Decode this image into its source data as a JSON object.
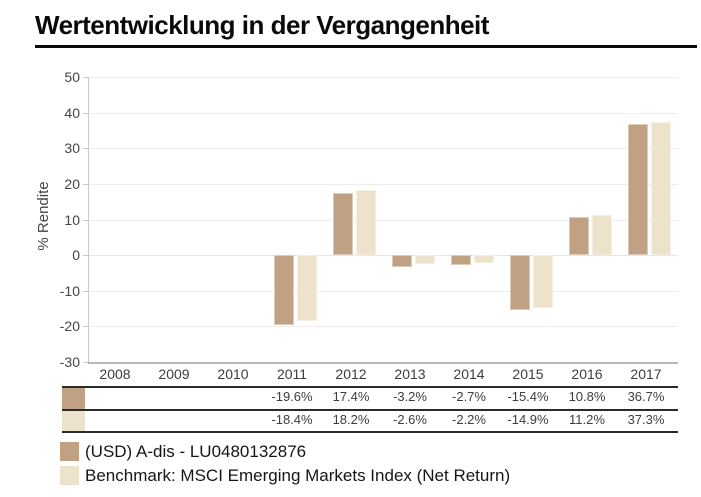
{
  "title": "Wertentwicklung in der Vergangenheit",
  "chart_data": {
    "type": "bar",
    "title": "Wertentwicklung in der Vergangenheit",
    "categories": [
      "2008",
      "2009",
      "2010",
      "2011",
      "2012",
      "2013",
      "2014",
      "2015",
      "2016",
      "2017"
    ],
    "series": [
      {
        "name": "(USD) A-dis - LU0480132876",
        "color": "#c0a183",
        "values": [
          null,
          null,
          null,
          -19.6,
          17.4,
          -3.2,
          -2.7,
          -15.4,
          10.8,
          36.7
        ]
      },
      {
        "name": "Benchmark: MSCI Emerging Markets Index (Net Return)",
        "color": "#ede2cb",
        "values": [
          null,
          null,
          null,
          -18.4,
          18.2,
          -2.6,
          -2.2,
          -14.9,
          11.2,
          37.3
        ]
      }
    ],
    "xlabel": "",
    "ylabel": "% Rendite",
    "ylim": [
      -30,
      50
    ],
    "yticks": [
      50,
      40,
      30,
      20,
      10,
      0,
      -10,
      -20,
      -30
    ],
    "grid": true,
    "legend_position": "bottom"
  },
  "table": {
    "columns": [
      "2008",
      "2009",
      "2010",
      "2011",
      "2012",
      "2013",
      "2014",
      "2015",
      "2016",
      "2017"
    ],
    "rows": [
      {
        "series": "(USD) A-dis - LU0480132876",
        "swatch_color": "#c0a183",
        "values": [
          "",
          "",
          "",
          "-19.6%",
          "17.4%",
          "-3.2%",
          "-2.7%",
          "-15.4%",
          "10.8%",
          "36.7%"
        ]
      },
      {
        "series": "Benchmark: MSCI Emerging Markets Index (Net Return)",
        "swatch_color": "#ede2cb",
        "values": [
          "",
          "",
          "",
          "-18.4%",
          "18.2%",
          "-2.6%",
          "-2.2%",
          "-14.9%",
          "11.2%",
          "37.3%"
        ]
      }
    ]
  },
  "legend": {
    "items": [
      {
        "label": "(USD) A-dis - LU0480132876",
        "color": "#c0a183"
      },
      {
        "label": "Benchmark: MSCI Emerging Markets Index (Net Return)",
        "color": "#ede2cb"
      }
    ]
  }
}
